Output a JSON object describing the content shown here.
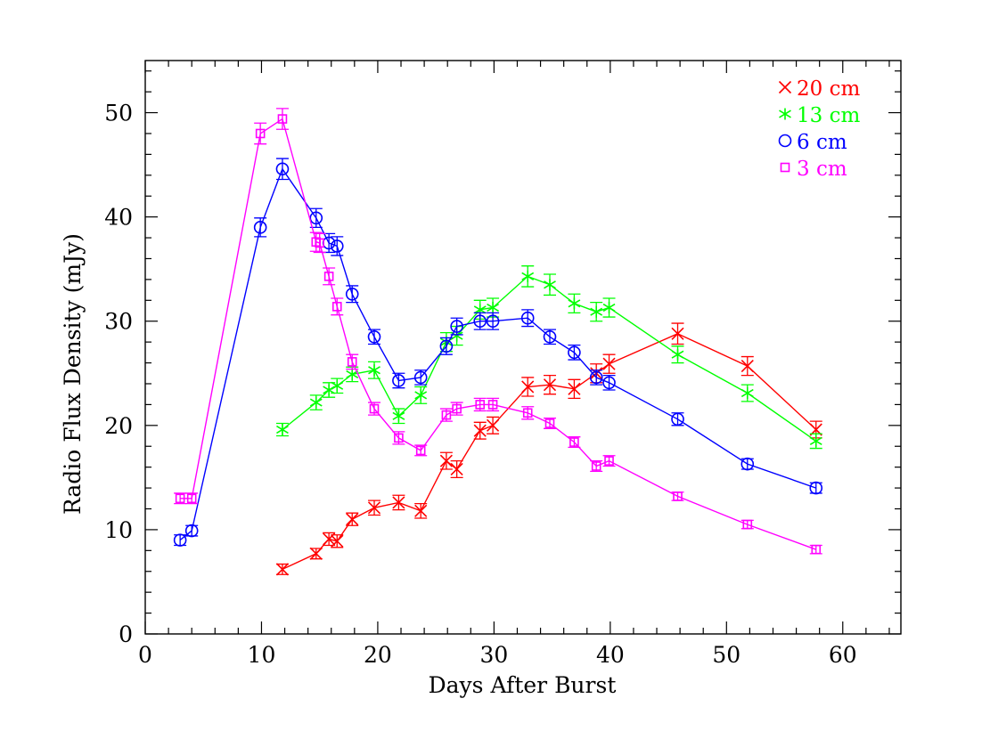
{
  "chart_data": {
    "type": "line",
    "xlabel": "Days After Burst",
    "ylabel": "Radio Flux Density (mJy)",
    "xlim": [
      0,
      65
    ],
    "ylim": [
      0,
      55
    ],
    "x_ticks": [
      0,
      10,
      20,
      30,
      40,
      50,
      60
    ],
    "y_ticks": [
      0,
      10,
      20,
      30,
      40,
      50
    ],
    "grid": false,
    "legend_position": "top-right",
    "series": [
      {
        "name": "20 cm",
        "color": "#ff0000",
        "marker": "cross",
        "x": [
          11.8,
          14.7,
          15.8,
          16.5,
          17.8,
          19.7,
          21.8,
          23.7,
          25.9,
          26.8,
          28.8,
          29.9,
          32.9,
          34.8,
          36.9,
          38.8,
          39.9,
          45.8,
          51.8,
          57.7
        ],
        "y": [
          6.2,
          7.7,
          9.1,
          8.9,
          11.0,
          12.1,
          12.6,
          11.8,
          16.6,
          15.8,
          19.5,
          20.0,
          23.7,
          23.9,
          23.5,
          25.0,
          25.9,
          28.8,
          25.7,
          19.6
        ],
        "err": [
          0.5,
          0.5,
          0.6,
          0.6,
          0.6,
          0.7,
          0.7,
          0.7,
          0.8,
          0.8,
          0.8,
          0.8,
          0.9,
          0.9,
          0.9,
          0.9,
          0.9,
          1.0,
          0.9,
          0.8
        ]
      },
      {
        "name": "13 cm",
        "color": "#00ff00",
        "marker": "asterisk",
        "x": [
          11.8,
          14.7,
          15.8,
          16.5,
          17.8,
          19.7,
          21.8,
          23.7,
          25.9,
          26.8,
          28.8,
          29.9,
          32.9,
          34.8,
          36.9,
          38.8,
          39.9,
          45.8,
          51.8,
          57.7
        ],
        "y": [
          19.6,
          22.2,
          23.4,
          23.8,
          24.9,
          25.3,
          20.9,
          22.9,
          28.0,
          28.6,
          31.1,
          31.3,
          34.3,
          33.5,
          31.7,
          30.9,
          31.3,
          26.8,
          23.1,
          18.5
        ],
        "err": [
          0.6,
          0.7,
          0.7,
          0.7,
          0.7,
          0.8,
          0.7,
          0.8,
          0.9,
          0.9,
          0.9,
          0.9,
          1.0,
          1.0,
          0.9,
          0.9,
          0.9,
          0.8,
          0.8,
          0.7
        ]
      },
      {
        "name": "6 cm",
        "color": "#0000ff",
        "marker": "circle",
        "x": [
          3.0,
          4.0,
          9.9,
          11.8,
          14.7,
          15.8,
          16.5,
          17.8,
          19.7,
          21.8,
          23.7,
          25.9,
          26.8,
          28.8,
          29.9,
          32.9,
          34.8,
          36.9,
          38.8,
          39.9,
          45.8,
          51.8,
          57.7
        ],
        "y": [
          9.0,
          9.9,
          39.0,
          44.6,
          39.9,
          37.5,
          37.2,
          32.6,
          28.5,
          24.3,
          24.6,
          27.6,
          29.5,
          30.0,
          30.0,
          30.3,
          28.5,
          27.0,
          24.6,
          24.1,
          20.6,
          16.3,
          14.0
        ],
        "err": [
          0.5,
          0.5,
          0.9,
          1.0,
          0.9,
          0.9,
          0.9,
          0.8,
          0.7,
          0.7,
          0.7,
          0.8,
          0.8,
          0.8,
          0.8,
          0.8,
          0.7,
          0.7,
          0.7,
          0.7,
          0.6,
          0.5,
          0.5
        ]
      },
      {
        "name": "3 cm",
        "color": "#ff00ff",
        "marker": "square",
        "x": [
          3.0,
          4.0,
          9.9,
          11.8,
          14.7,
          15.0,
          15.8,
          16.5,
          17.8,
          19.7,
          21.8,
          23.7,
          25.9,
          26.8,
          28.8,
          29.9,
          32.9,
          34.8,
          36.9,
          38.8,
          39.9,
          45.8,
          51.8,
          57.7
        ],
        "y": [
          13.0,
          13.0,
          48.0,
          49.4,
          37.6,
          37.5,
          34.3,
          31.4,
          26.1,
          21.6,
          18.8,
          17.6,
          21.0,
          21.6,
          22.0,
          22.0,
          21.2,
          20.2,
          18.4,
          16.1,
          16.6,
          13.2,
          10.5,
          8.1
        ],
        "err": [
          0.5,
          0.5,
          1.0,
          1.0,
          0.9,
          0.9,
          0.8,
          0.8,
          0.7,
          0.6,
          0.6,
          0.5,
          0.6,
          0.6,
          0.6,
          0.6,
          0.6,
          0.5,
          0.5,
          0.5,
          0.5,
          0.4,
          0.4,
          0.4
        ]
      }
    ]
  }
}
